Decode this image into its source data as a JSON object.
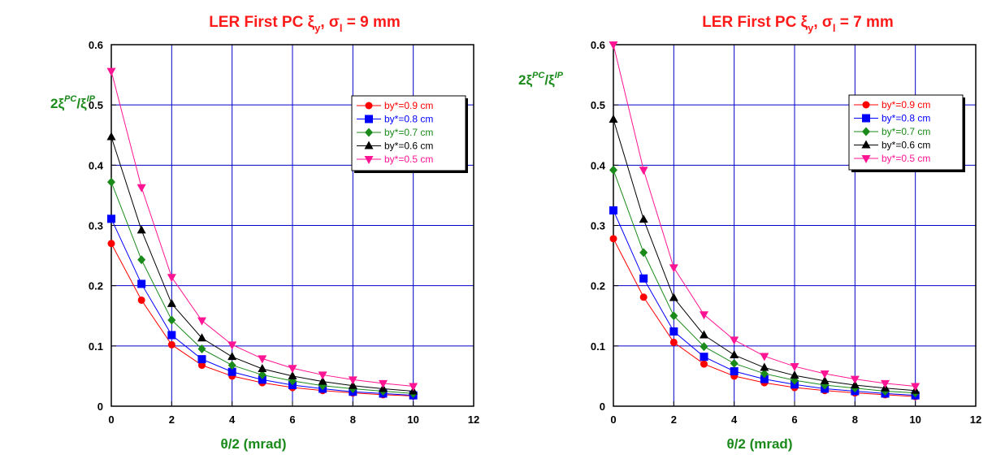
{
  "chart_data": [
    {
      "type": "line",
      "title": {
        "main": "LER First PC ξ",
        "sub1": "y",
        "mid": ", σ",
        "sub2": "l",
        "tail": " = 9 mm"
      },
      "ylabel": {
        "base": "2ξ",
        "sup1": "PC",
        "mid": "/ξ",
        "sup2": "IP"
      },
      "xlabel": "θ/2 (mrad)",
      "xlim": [
        0,
        12
      ],
      "ylim": [
        0,
        0.6
      ],
      "x_ticks": [
        "0",
        "2",
        "4",
        "6",
        "8",
        "10",
        "12"
      ],
      "y_ticks": [
        "0",
        "0.1",
        "0.2",
        "0.3",
        "0.4",
        "0.5",
        "0.6"
      ],
      "grid": true,
      "legend_position": "top-right",
      "x": [
        0,
        1,
        2,
        3,
        4,
        5,
        6,
        7,
        8,
        9,
        10
      ],
      "series": [
        {
          "name": "by*=0.9 cm",
          "color": "#ff0000",
          "marker": "circle",
          "line_color": "#ff0000",
          "values": [
            0.27,
            0.176,
            0.102,
            0.068,
            0.05,
            0.039,
            0.031,
            0.026,
            0.022,
            0.019,
            0.017
          ]
        },
        {
          "name": "by*=0.8 cm",
          "color": "#0000ff",
          "marker": "square",
          "line_color": "#0000ff",
          "values": [
            0.311,
            0.203,
            0.118,
            0.078,
            0.057,
            0.044,
            0.035,
            0.029,
            0.024,
            0.021,
            0.018
          ]
        },
        {
          "name": "by*=0.7 cm",
          "color": "#1a8a1a",
          "marker": "diamond",
          "line_color": "#1a8a1a",
          "values": [
            0.372,
            0.243,
            0.143,
            0.095,
            0.068,
            0.052,
            0.042,
            0.034,
            0.029,
            0.025,
            0.021
          ]
        },
        {
          "name": "by*=0.6 cm",
          "color": "#000000",
          "marker": "triangle-up",
          "line_color": "#000000",
          "values": [
            0.447,
            0.292,
            0.17,
            0.113,
            0.082,
            0.062,
            0.05,
            0.041,
            0.034,
            0.029,
            0.025
          ]
        },
        {
          "name": "by*=0.5 cm",
          "color": "#ff1493",
          "marker": "triangle-down",
          "line_color": "#ff1493",
          "values": [
            0.556,
            0.363,
            0.214,
            0.142,
            0.102,
            0.079,
            0.063,
            0.052,
            0.044,
            0.038,
            0.033
          ]
        }
      ]
    },
    {
      "type": "line",
      "title": {
        "main": "LER First PC ξ",
        "sub1": "y",
        "mid": ", σ",
        "sub2": "l",
        "tail": " = 7 mm"
      },
      "ylabel": {
        "base": "2ξ",
        "sup1": "PC",
        "mid": "/ξ",
        "sup2": "IP"
      },
      "xlabel": "θ/2 (mrad)",
      "xlim": [
        0,
        12
      ],
      "ylim": [
        0,
        0.6
      ],
      "x_ticks": [
        "0",
        "2",
        "4",
        "6",
        "8",
        "10",
        "12"
      ],
      "y_ticks": [
        "0",
        "0.1",
        "0.2",
        "0.3",
        "0.4",
        "0.5",
        "0.6"
      ],
      "grid": true,
      "legend_position": "top-right",
      "x": [
        0,
        1,
        2,
        3,
        4,
        5,
        6,
        7,
        8,
        9,
        10
      ],
      "series": [
        {
          "name": "by*=0.9 cm",
          "color": "#ff0000",
          "marker": "circle",
          "line_color": "#ff0000",
          "values": [
            0.278,
            0.181,
            0.106,
            0.07,
            0.05,
            0.039,
            0.031,
            0.026,
            0.022,
            0.019,
            0.016
          ]
        },
        {
          "name": "by*=0.8 cm",
          "color": "#0000ff",
          "marker": "square",
          "line_color": "#0000ff",
          "values": [
            0.325,
            0.212,
            0.124,
            0.082,
            0.058,
            0.045,
            0.036,
            0.029,
            0.025,
            0.021,
            0.018
          ]
        },
        {
          "name": "by*=0.7 cm",
          "color": "#1a8a1a",
          "marker": "diamond",
          "line_color": "#1a8a1a",
          "values": [
            0.392,
            0.255,
            0.15,
            0.099,
            0.071,
            0.054,
            0.043,
            0.035,
            0.03,
            0.025,
            0.022
          ]
        },
        {
          "name": "by*=0.6 cm",
          "color": "#000000",
          "marker": "triangle-up",
          "line_color": "#000000",
          "values": [
            0.476,
            0.31,
            0.18,
            0.118,
            0.085,
            0.064,
            0.051,
            0.042,
            0.035,
            0.03,
            0.026
          ]
        },
        {
          "name": "by*=0.5 cm",
          "color": "#ff1493",
          "marker": "triangle-down",
          "line_color": "#ff1493",
          "values": [
            0.6,
            0.392,
            0.23,
            0.152,
            0.11,
            0.083,
            0.066,
            0.054,
            0.045,
            0.038,
            0.033
          ]
        }
      ]
    }
  ]
}
